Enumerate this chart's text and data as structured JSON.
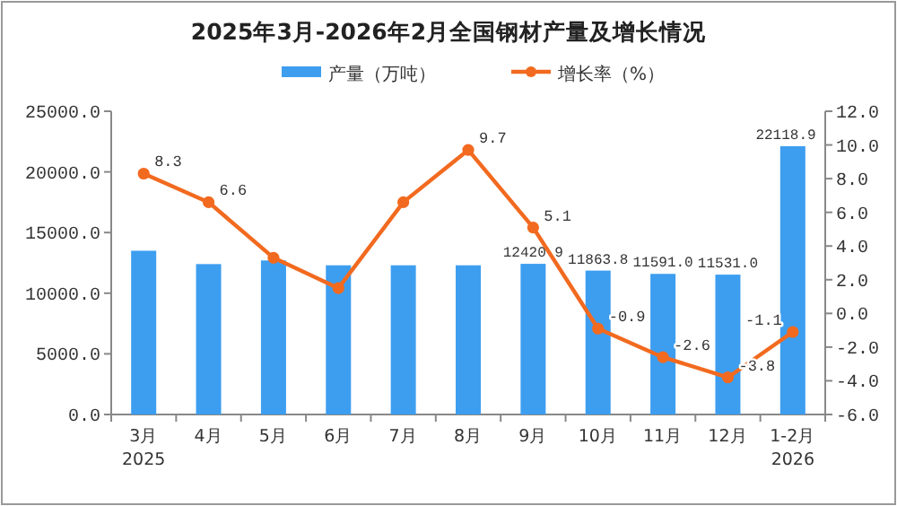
{
  "chart_data": {
    "type": "bar",
    "title": "2025年3月-2026年2月全国钢材产量及增长情况",
    "categories": [
      "3月\n2025",
      "4月",
      "5月",
      "6月",
      "7月",
      "8月",
      "9月",
      "10月",
      "11月",
      "12月",
      "1-2月\n2026"
    ],
    "series": [
      {
        "name": "产量（万吨）",
        "color": "#3d9ef0",
        "values": [
          13500,
          12400,
          12700,
          12300,
          12300,
          12300,
          12420.9,
          11863.8,
          11591.0,
          11531.0,
          22118.9
        ],
        "value_labels": [
          null,
          null,
          null,
          null,
          null,
          null,
          "12420.9",
          "11863.8",
          "11591.0",
          "11531.0",
          "22118.9"
        ]
      },
      {
        "name": "增长率（%）",
        "type": "line",
        "axis": "y2",
        "color": "#f26a1f",
        "marker": "circle",
        "values": [
          8.3,
          6.6,
          3.3,
          1.5,
          6.6,
          9.7,
          5.1,
          -0.9,
          -2.6,
          -3.8,
          -1.1
        ],
        "value_labels": [
          "8.3",
          "6.6",
          null,
          null,
          null,
          "9.7",
          "5.1",
          "-0.9",
          "-2.6",
          "-3.8",
          "-1.1"
        ]
      }
    ],
    "ylim": [
      0,
      25000
    ],
    "yticks": [
      {
        "value": 0,
        "label": "0.0"
      },
      {
        "value": 5000,
        "label": "5000.0"
      },
      {
        "value": 10000,
        "label": "10000.0"
      },
      {
        "value": 15000,
        "label": "15000.0"
      },
      {
        "value": 20000,
        "label": "20000.0"
      },
      {
        "value": 25000,
        "label": "25000.0"
      }
    ],
    "y2lim": [
      -6,
      12
    ],
    "y2ticks": [
      {
        "value": -6,
        "label": "-6.0"
      },
      {
        "value": -4,
        "label": "-4.0"
      },
      {
        "value": -2,
        "label": "-2.0"
      },
      {
        "value": 0,
        "label": "0.0"
      },
      {
        "value": 2,
        "label": "2.0"
      },
      {
        "value": 4,
        "label": "4.0"
      },
      {
        "value": 6,
        "label": "6.0"
      },
      {
        "value": 8,
        "label": "8.0"
      },
      {
        "value": 10,
        "label": "10.0"
      },
      {
        "value": 12,
        "label": "12.0"
      }
    ],
    "legend": "top",
    "grid": false
  }
}
